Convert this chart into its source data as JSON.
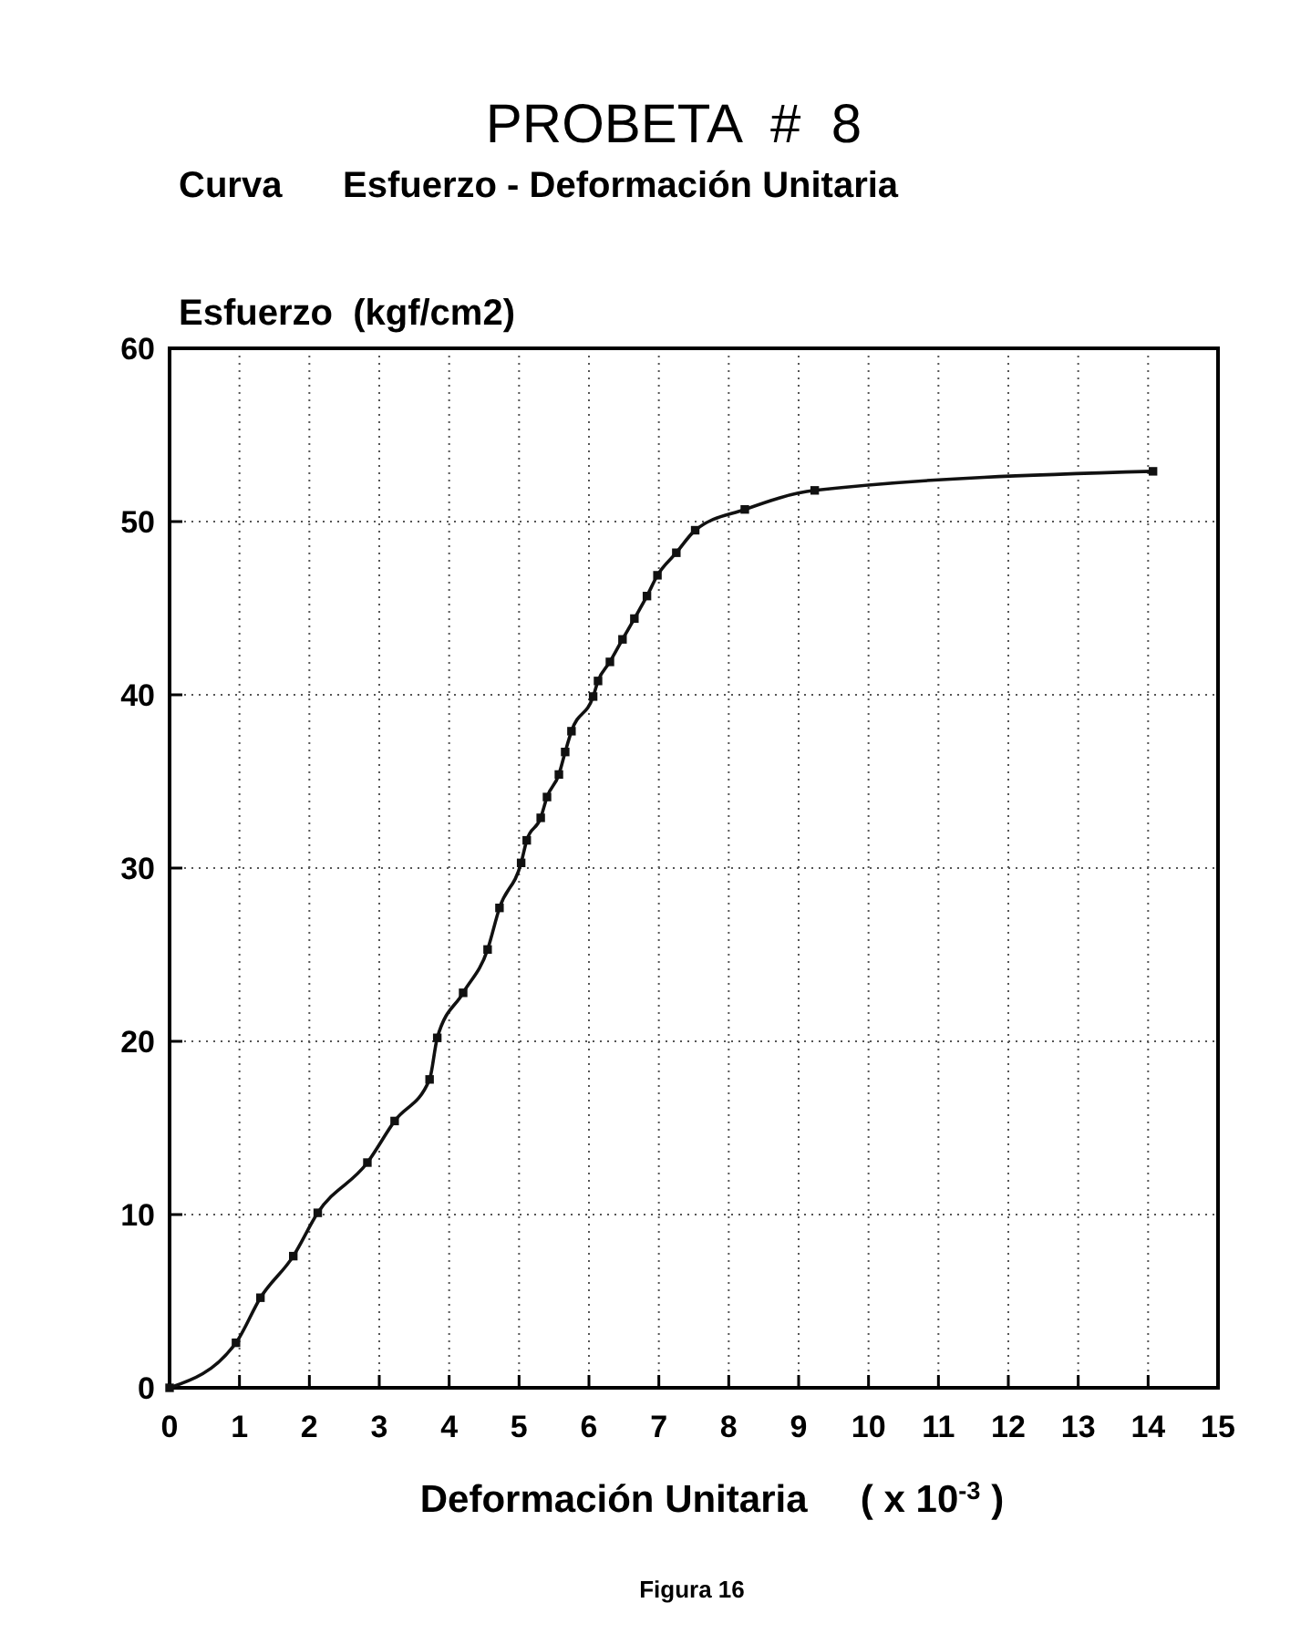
{
  "chart_data": {
    "type": "line",
    "title": "PROBETA  #  8",
    "subtitle": "Curva      Esfuerzo - Deformación Unitaria",
    "xlabel": "Deformación Unitaria     ( x 10$^{-3}$ )",
    "ylabel": "Esfuerzo  (kgf/cm2)",
    "annotations": [
      "Figura 16"
    ],
    "series": [
      {
        "color": "#111111",
        "x": [
          0,
          0.95,
          1.3,
          1.77,
          2.12,
          2.83,
          3.22,
          3.72,
          3.83,
          4.2,
          4.55,
          4.72,
          5.03,
          5.11,
          5.31,
          5.4,
          5.57,
          5.66,
          5.75,
          6.06,
          6.13,
          6.3,
          6.48,
          6.65,
          6.83,
          6.98,
          7.25,
          7.52,
          8.23,
          9.23,
          14.07
        ],
        "values": [
          0,
          2.6,
          5.2,
          7.6,
          10.1,
          13,
          15.4,
          17.8,
          20.2,
          22.8,
          25.3,
          27.7,
          30.3,
          31.6,
          32.9,
          34.1,
          35.4,
          36.7,
          37.9,
          39.9,
          40.8,
          41.9,
          43.2,
          44.4,
          45.7,
          46.9,
          48.2,
          49.5,
          50.7,
          51.8,
          52.9
        ]
      }
    ],
    "xlim": [
      0,
      15
    ],
    "xticks": [
      0,
      1,
      2,
      3,
      4,
      5,
      6,
      7,
      8,
      9,
      10,
      11,
      12,
      13,
      14,
      15
    ],
    "ylim": [
      0,
      60
    ],
    "yticks": [
      0,
      10,
      20,
      30,
      40,
      50,
      60
    ],
    "grid": true,
    "marker": "square",
    "line_style": "solid"
  }
}
